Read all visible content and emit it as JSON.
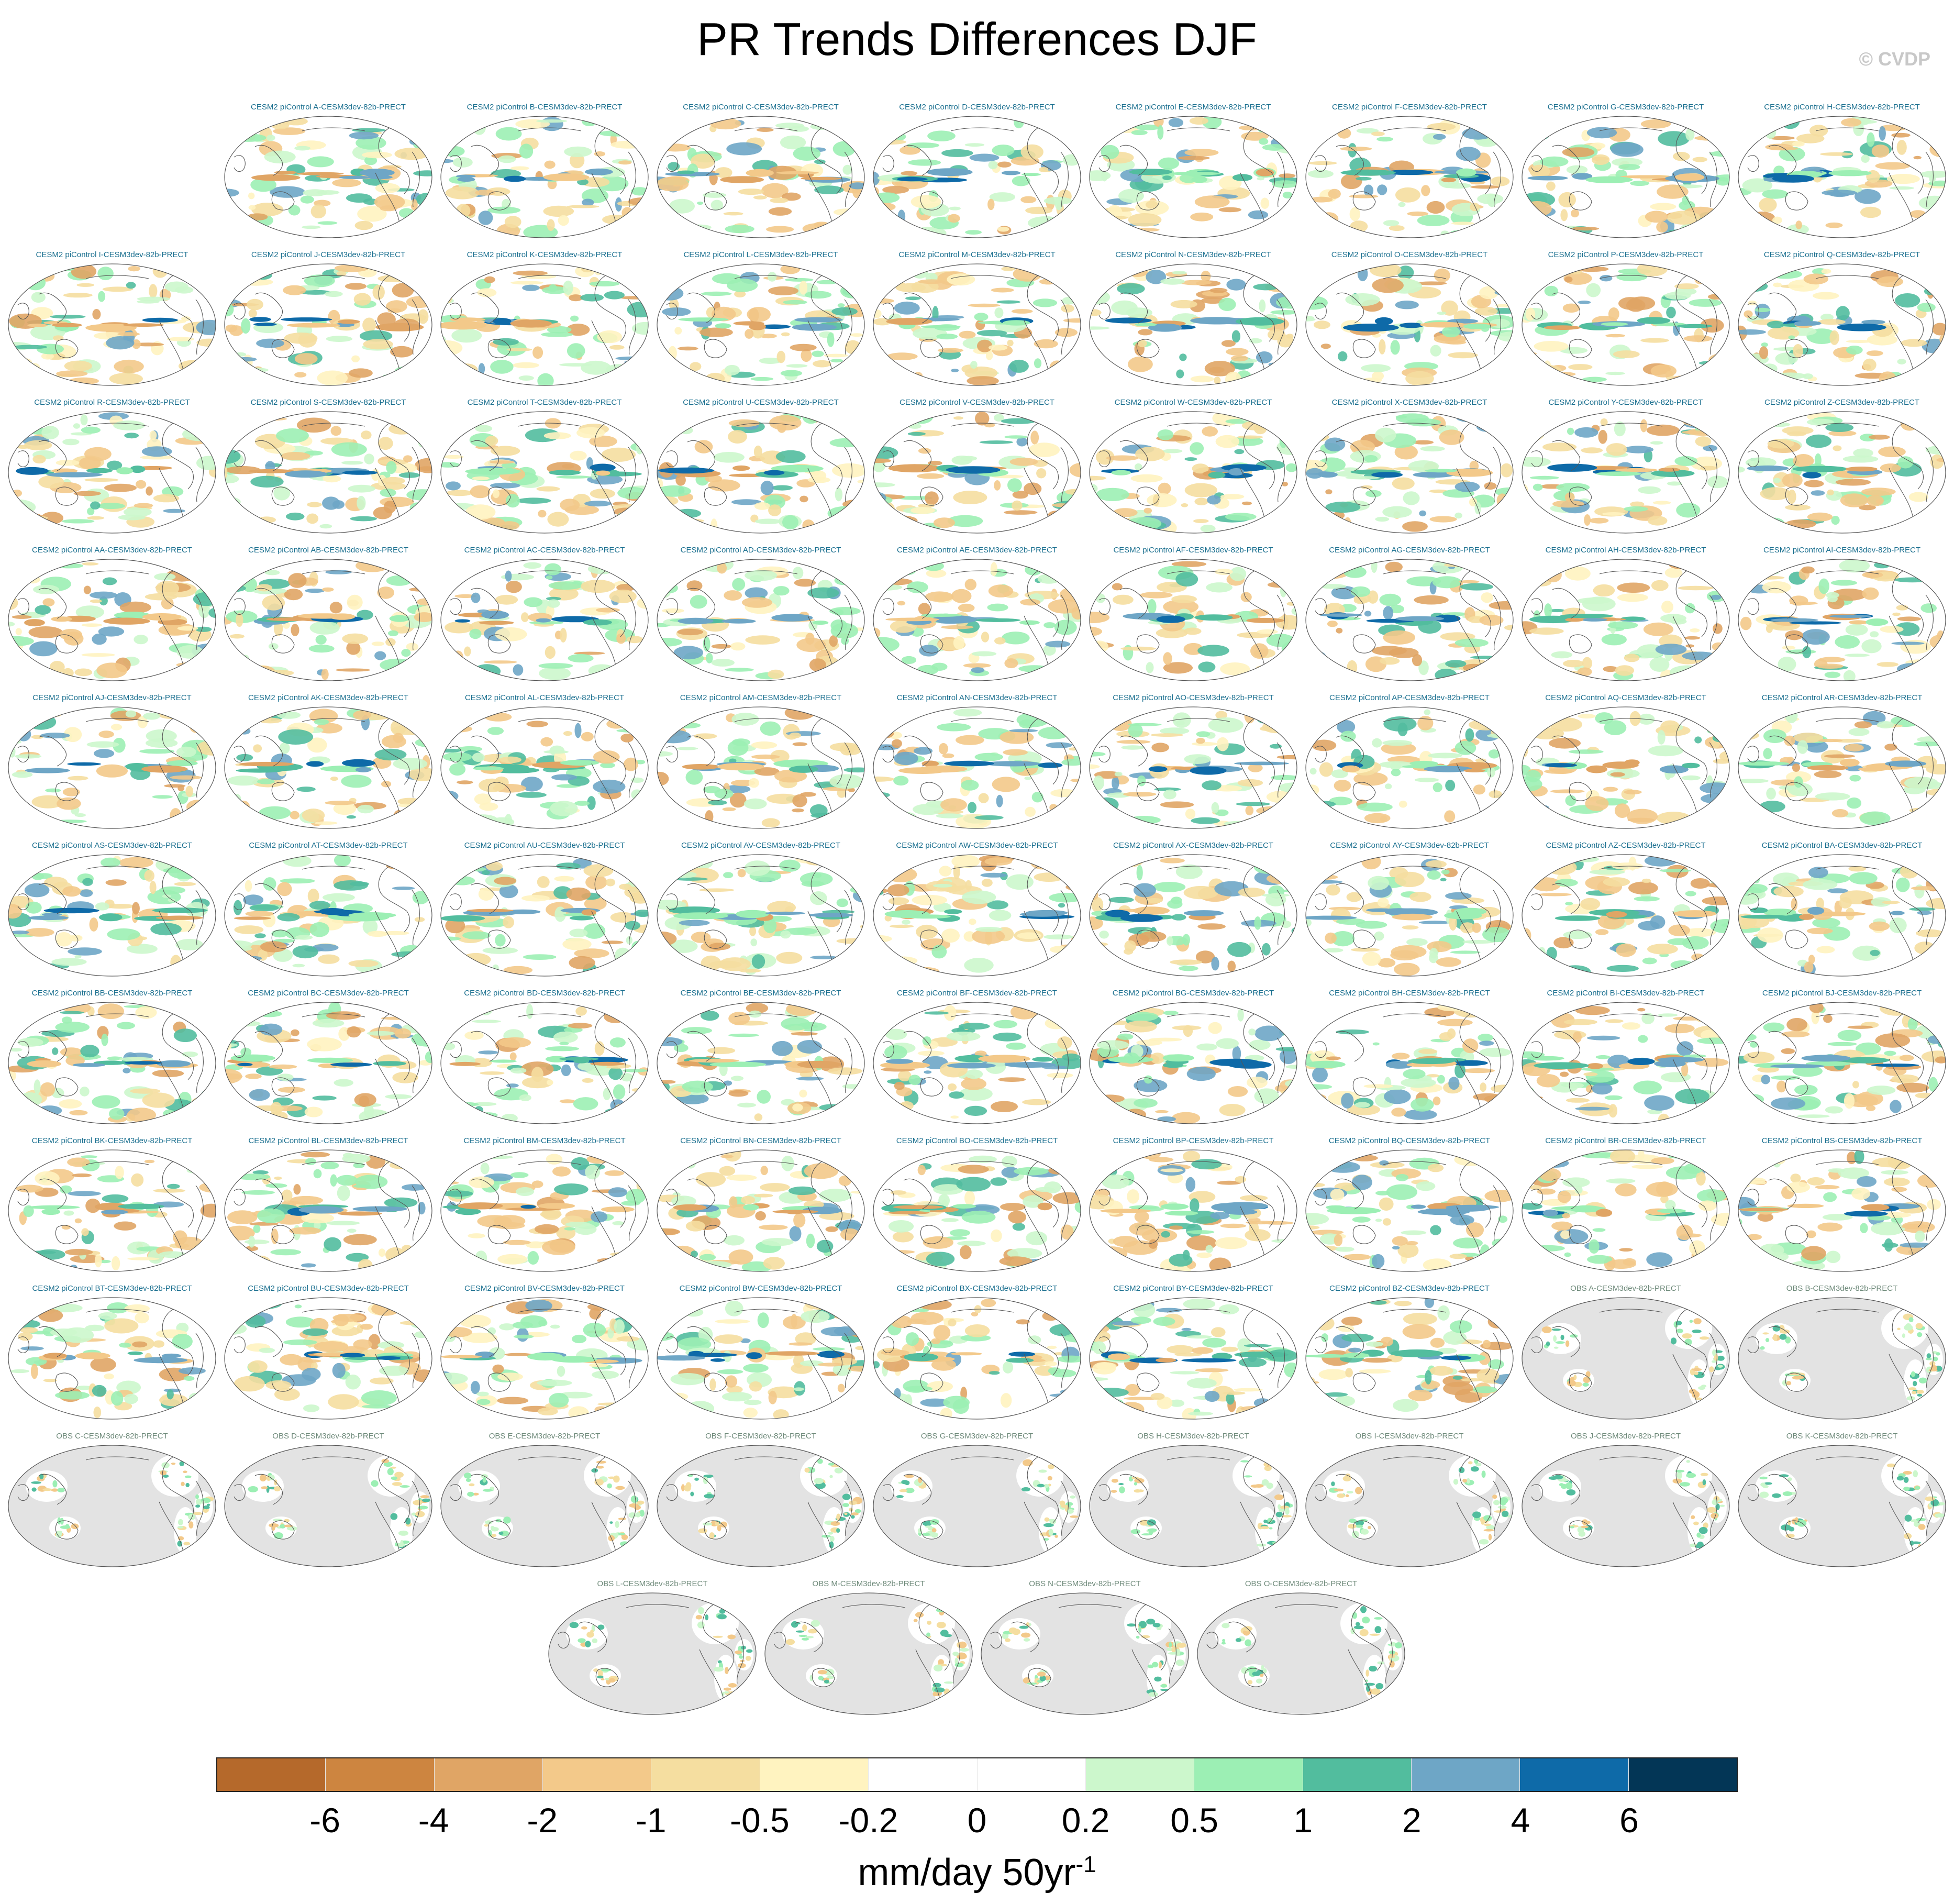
{
  "title": "PR Trends Differences DJF",
  "credit": "© CVDP",
  "colorbar": {
    "colors": [
      "#b5692b",
      "#cd8540",
      "#e0a565",
      "#f3c98a",
      "#f5dea0",
      "#fff3c0",
      "#ffffff",
      "#ffffff",
      "#ccf7cc",
      "#9cefb4",
      "#52bd9e",
      "#6ea6c6",
      "#0e6aa8",
      "#033656"
    ],
    "tick_labels": [
      "-6",
      "-4",
      "-2",
      "-1",
      "-0.5",
      "-0.2",
      "0",
      "0.2",
      "0.5",
      "1",
      "2",
      "4",
      "6"
    ],
    "unit": "mm/day 50yr",
    "unit_exponent": "-1"
  },
  "panels": [
    {
      "title": "CESM2 piControl A-CESM3dev-82b-PRECT",
      "type": "model"
    },
    {
      "title": "CESM2 piControl B-CESM3dev-82b-PRECT",
      "type": "model"
    },
    {
      "title": "CESM2 piControl C-CESM3dev-82b-PRECT",
      "type": "model"
    },
    {
      "title": "CESM2 piControl D-CESM3dev-82b-PRECT",
      "type": "model"
    },
    {
      "title": "CESM2 piControl E-CESM3dev-82b-PRECT",
      "type": "model"
    },
    {
      "title": "CESM2 piControl F-CESM3dev-82b-PRECT",
      "type": "model"
    },
    {
      "title": "CESM2 piControl G-CESM3dev-82b-PRECT",
      "type": "model"
    },
    {
      "title": "CESM2 piControl H-CESM3dev-82b-PRECT",
      "type": "model"
    },
    {
      "title": "CESM2 piControl I-CESM3dev-82b-PRECT",
      "type": "model"
    },
    {
      "title": "CESM2 piControl J-CESM3dev-82b-PRECT",
      "type": "model"
    },
    {
      "title": "CESM2 piControl K-CESM3dev-82b-PRECT",
      "type": "model"
    },
    {
      "title": "CESM2 piControl L-CESM3dev-82b-PRECT",
      "type": "model"
    },
    {
      "title": "CESM2 piControl M-CESM3dev-82b-PRECT",
      "type": "model"
    },
    {
      "title": "CESM2 piControl N-CESM3dev-82b-PRECT",
      "type": "model"
    },
    {
      "title": "CESM2 piControl O-CESM3dev-82b-PRECT",
      "type": "model"
    },
    {
      "title": "CESM2 piControl P-CESM3dev-82b-PRECT",
      "type": "model"
    },
    {
      "title": "CESM2 piControl Q-CESM3dev-82b-PRECT",
      "type": "model"
    },
    {
      "title": "CESM2 piControl R-CESM3dev-82b-PRECT",
      "type": "model"
    },
    {
      "title": "CESM2 piControl S-CESM3dev-82b-PRECT",
      "type": "model"
    },
    {
      "title": "CESM2 piControl T-CESM3dev-82b-PRECT",
      "type": "model"
    },
    {
      "title": "CESM2 piControl U-CESM3dev-82b-PRECT",
      "type": "model"
    },
    {
      "title": "CESM2 piControl V-CESM3dev-82b-PRECT",
      "type": "model"
    },
    {
      "title": "CESM2 piControl W-CESM3dev-82b-PRECT",
      "type": "model"
    },
    {
      "title": "CESM2 piControl X-CESM3dev-82b-PRECT",
      "type": "model"
    },
    {
      "title": "CESM2 piControl Y-CESM3dev-82b-PRECT",
      "type": "model"
    },
    {
      "title": "CESM2 piControl Z-CESM3dev-82b-PRECT",
      "type": "model"
    },
    {
      "title": "CESM2 piControl AA-CESM3dev-82b-PRECT",
      "type": "model"
    },
    {
      "title": "CESM2 piControl AB-CESM3dev-82b-PRECT",
      "type": "model"
    },
    {
      "title": "CESM2 piControl AC-CESM3dev-82b-PRECT",
      "type": "model"
    },
    {
      "title": "CESM2 piControl AD-CESM3dev-82b-PRECT",
      "type": "model"
    },
    {
      "title": "CESM2 piControl AE-CESM3dev-82b-PRECT",
      "type": "model"
    },
    {
      "title": "CESM2 piControl AF-CESM3dev-82b-PRECT",
      "type": "model"
    },
    {
      "title": "CESM2 piControl AG-CESM3dev-82b-PRECT",
      "type": "model"
    },
    {
      "title": "CESM2 piControl AH-CESM3dev-82b-PRECT",
      "type": "model"
    },
    {
      "title": "CESM2 piControl AI-CESM3dev-82b-PRECT",
      "type": "model"
    },
    {
      "title": "CESM2 piControl AJ-CESM3dev-82b-PRECT",
      "type": "model"
    },
    {
      "title": "CESM2 piControl AK-CESM3dev-82b-PRECT",
      "type": "model"
    },
    {
      "title": "CESM2 piControl AL-CESM3dev-82b-PRECT",
      "type": "model"
    },
    {
      "title": "CESM2 piControl AM-CESM3dev-82b-PRECT",
      "type": "model"
    },
    {
      "title": "CESM2 piControl AN-CESM3dev-82b-PRECT",
      "type": "model"
    },
    {
      "title": "CESM2 piControl AO-CESM3dev-82b-PRECT",
      "type": "model"
    },
    {
      "title": "CESM2 piControl AP-CESM3dev-82b-PRECT",
      "type": "model"
    },
    {
      "title": "CESM2 piControl AQ-CESM3dev-82b-PRECT",
      "type": "model"
    },
    {
      "title": "CESM2 piControl AR-CESM3dev-82b-PRECT",
      "type": "model"
    },
    {
      "title": "CESM2 piControl AS-CESM3dev-82b-PRECT",
      "type": "model"
    },
    {
      "title": "CESM2 piControl AT-CESM3dev-82b-PRECT",
      "type": "model"
    },
    {
      "title": "CESM2 piControl AU-CESM3dev-82b-PRECT",
      "type": "model"
    },
    {
      "title": "CESM2 piControl AV-CESM3dev-82b-PRECT",
      "type": "model"
    },
    {
      "title": "CESM2 piControl AW-CESM3dev-82b-PRECT",
      "type": "model"
    },
    {
      "title": "CESM2 piControl AX-CESM3dev-82b-PRECT",
      "type": "model"
    },
    {
      "title": "CESM2 piControl AY-CESM3dev-82b-PRECT",
      "type": "model"
    },
    {
      "title": "CESM2 piControl AZ-CESM3dev-82b-PRECT",
      "type": "model"
    },
    {
      "title": "CESM2 piControl BA-CESM3dev-82b-PRECT",
      "type": "model"
    },
    {
      "title": "CESM2 piControl BB-CESM3dev-82b-PRECT",
      "type": "model"
    },
    {
      "title": "CESM2 piControl BC-CESM3dev-82b-PRECT",
      "type": "model"
    },
    {
      "title": "CESM2 piControl BD-CESM3dev-82b-PRECT",
      "type": "model"
    },
    {
      "title": "CESM2 piControl BE-CESM3dev-82b-PRECT",
      "type": "model"
    },
    {
      "title": "CESM2 piControl BF-CESM3dev-82b-PRECT",
      "type": "model"
    },
    {
      "title": "CESM2 piControl BG-CESM3dev-82b-PRECT",
      "type": "model"
    },
    {
      "title": "CESM2 piControl BH-CESM3dev-82b-PRECT",
      "type": "model"
    },
    {
      "title": "CESM2 piControl BI-CESM3dev-82b-PRECT",
      "type": "model"
    },
    {
      "title": "CESM2 piControl BJ-CESM3dev-82b-PRECT",
      "type": "model"
    },
    {
      "title": "CESM2 piControl BK-CESM3dev-82b-PRECT",
      "type": "model"
    },
    {
      "title": "CESM2 piControl BL-CESM3dev-82b-PRECT",
      "type": "model"
    },
    {
      "title": "CESM2 piControl BM-CESM3dev-82b-PRECT",
      "type": "model"
    },
    {
      "title": "CESM2 piControl BN-CESM3dev-82b-PRECT",
      "type": "model"
    },
    {
      "title": "CESM2 piControl BO-CESM3dev-82b-PRECT",
      "type": "model"
    },
    {
      "title": "CESM2 piControl BP-CESM3dev-82b-PRECT",
      "type": "model"
    },
    {
      "title": "CESM2 piControl BQ-CESM3dev-82b-PRECT",
      "type": "model"
    },
    {
      "title": "CESM2 piControl BR-CESM3dev-82b-PRECT",
      "type": "model"
    },
    {
      "title": "CESM2 piControl BS-CESM3dev-82b-PRECT",
      "type": "model"
    },
    {
      "title": "CESM2 piControl BT-CESM3dev-82b-PRECT",
      "type": "model"
    },
    {
      "title": "CESM2 piControl BU-CESM3dev-82b-PRECT",
      "type": "model"
    },
    {
      "title": "CESM2 piControl BV-CESM3dev-82b-PRECT",
      "type": "model"
    },
    {
      "title": "CESM2 piControl BW-CESM3dev-82b-PRECT",
      "type": "model"
    },
    {
      "title": "CESM2 piControl BX-CESM3dev-82b-PRECT",
      "type": "model"
    },
    {
      "title": "CESM2 piControl BY-CESM3dev-82b-PRECT",
      "type": "model"
    },
    {
      "title": "CESM2 piControl BZ-CESM3dev-82b-PRECT",
      "type": "model"
    },
    {
      "title": "OBS A-CESM3dev-82b-PRECT",
      "type": "obs"
    },
    {
      "title": "OBS B-CESM3dev-82b-PRECT",
      "type": "obs"
    },
    {
      "title": "OBS C-CESM3dev-82b-PRECT",
      "type": "obs"
    },
    {
      "title": "OBS D-CESM3dev-82b-PRECT",
      "type": "obs"
    },
    {
      "title": "OBS E-CESM3dev-82b-PRECT",
      "type": "obs"
    },
    {
      "title": "OBS F-CESM3dev-82b-PRECT",
      "type": "obs"
    },
    {
      "title": "OBS G-CESM3dev-82b-PRECT",
      "type": "obs"
    },
    {
      "title": "OBS H-CESM3dev-82b-PRECT",
      "type": "obs"
    },
    {
      "title": "OBS I-CESM3dev-82b-PRECT",
      "type": "obs"
    },
    {
      "title": "OBS J-CESM3dev-82b-PRECT",
      "type": "obs"
    },
    {
      "title": "OBS K-CESM3dev-82b-PRECT",
      "type": "obs"
    },
    {
      "title": "OBS L-CESM3dev-82b-PRECT",
      "type": "obs"
    },
    {
      "title": "OBS M-CESM3dev-82b-PRECT",
      "type": "obs"
    },
    {
      "title": "OBS N-CESM3dev-82b-PRECT",
      "type": "obs"
    },
    {
      "title": "OBS O-CESM3dev-82b-PRECT",
      "type": "obs"
    }
  ]
}
